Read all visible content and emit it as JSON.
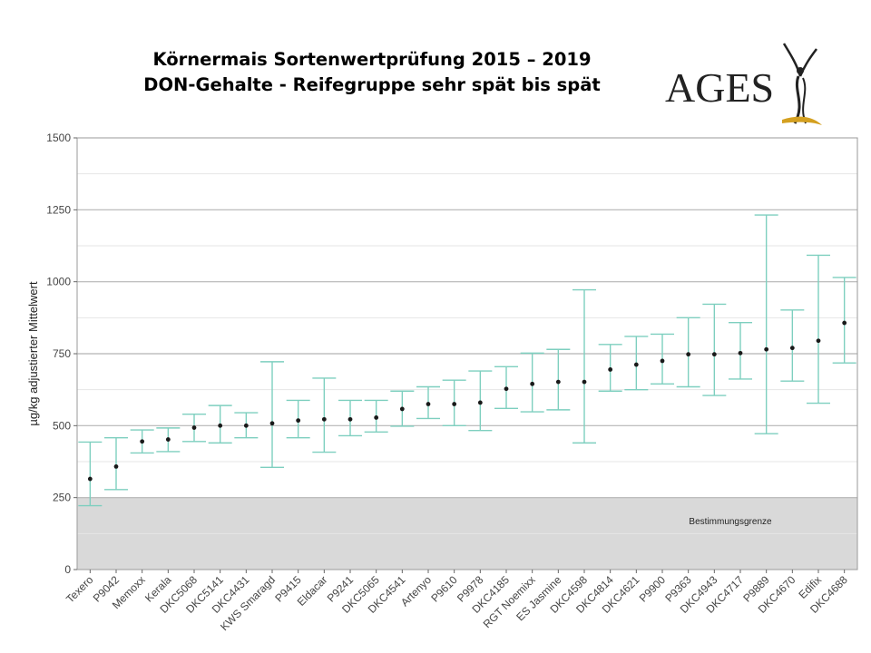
{
  "header": {
    "title_line1": "Körnermais Sortenwertprüfung 2015 – 2019",
    "title_line2": "DON-Gehalte - Reifegruppe sehr spät bis spät"
  },
  "logo": {
    "text": "AGES",
    "icon": "ages-logo-figure"
  },
  "chart_data": {
    "type": "errorbar",
    "title": "",
    "xlabel": "",
    "ylabel": "µg/kg adjustierter Mittelwert",
    "ylim": [
      0,
      1500
    ],
    "yticks": [
      0,
      250,
      500,
      750,
      1000,
      1250,
      1500
    ],
    "grid": true,
    "threshold": {
      "value": 250,
      "label": "Bestimmungsgrenze",
      "color": "#d9d9d9"
    },
    "colors": {
      "errorbar": "#7ecfbf",
      "point": "#1a1a1a"
    },
    "categories": [
      "Texero",
      "P9042",
      "Memoxx",
      "Kerala",
      "DKC5068",
      "DKC5141",
      "DKC4431",
      "KWS Smaragd",
      "P9415",
      "Eldacar",
      "P9241",
      "DKC5065",
      "DKC4541",
      "Artenyo",
      "P9610",
      "P9978",
      "DKC4185",
      "RGT Noemixx",
      "ES Jasmine",
      "DKC4598",
      "DKC4814",
      "DKC4621",
      "P9900",
      "P9363",
      "DKC4943",
      "DKC4717",
      "P9889",
      "DKC4670",
      "Edifix",
      "DKC4688"
    ],
    "values": [
      315,
      358,
      445,
      452,
      493,
      500,
      500,
      508,
      518,
      522,
      522,
      528,
      558,
      575,
      575,
      580,
      628,
      645,
      652,
      652,
      695,
      712,
      725,
      748,
      748,
      752,
      765,
      770,
      795,
      857
    ],
    "lower": [
      222,
      278,
      405,
      410,
      445,
      440,
      458,
      355,
      458,
      408,
      465,
      478,
      498,
      525,
      500,
      483,
      560,
      548,
      555,
      440,
      620,
      625,
      645,
      635,
      605,
      662,
      472,
      655,
      578,
      718
    ],
    "upper": [
      443,
      458,
      485,
      492,
      540,
      570,
      545,
      722,
      588,
      665,
      588,
      588,
      620,
      635,
      658,
      690,
      705,
      752,
      765,
      972,
      782,
      810,
      818,
      875,
      922,
      858,
      1232,
      902,
      1092,
      1015
    ]
  }
}
